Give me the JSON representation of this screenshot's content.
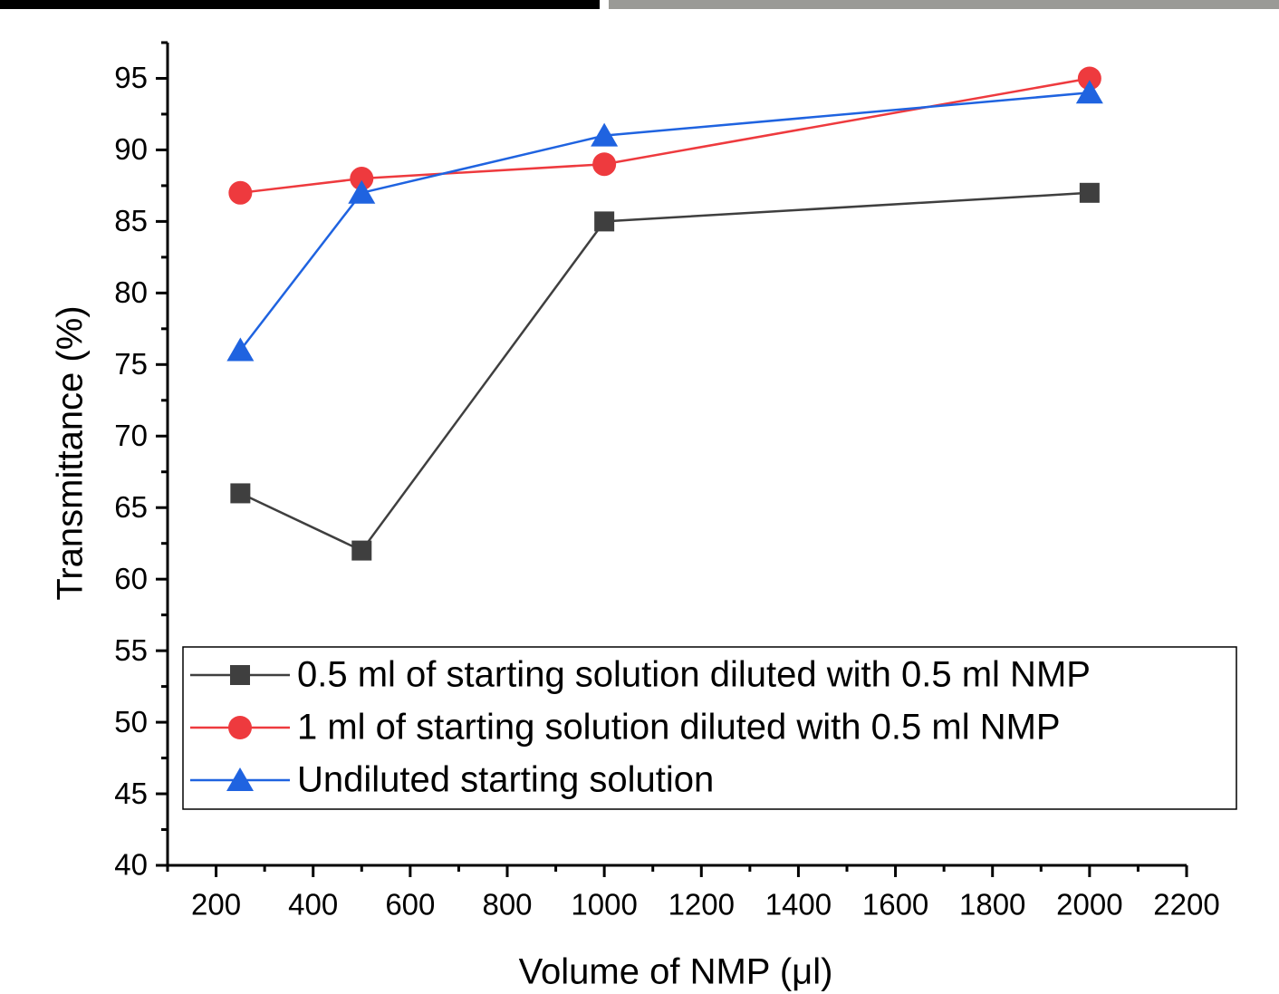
{
  "chart_data": {
    "type": "line",
    "y_label": "Transmittance (%)",
    "x_label": "Volume of NMP (μl)",
    "xlim": [
      100,
      2200
    ],
    "xticks": [
      200,
      400,
      600,
      800,
      1000,
      1200,
      1400,
      1600,
      1800,
      2000,
      2200
    ],
    "ylim": [
      40,
      97.5
    ],
    "yticks": [
      40,
      45,
      50,
      55,
      60,
      65,
      70,
      75,
      80,
      85,
      90,
      95
    ],
    "x": [
      250,
      500,
      1000,
      2000
    ],
    "legend": "bottom-right",
    "series": [
      {
        "name": "0.5 ml of starting solution diluted with 0.5 ml NMP",
        "color": "#3f3f3f",
        "marker": "square",
        "values": [
          66,
          62,
          85,
          87
        ]
      },
      {
        "name": "1 ml of starting solution diluted with 0.5 ml NMP",
        "color": "#ee3a3e",
        "marker": "circle",
        "values": [
          87,
          88,
          89,
          95
        ]
      },
      {
        "name": "Undiluted starting solution",
        "color": "#1f63e0",
        "marker": "triangle",
        "values": [
          76,
          87,
          91,
          94
        ]
      }
    ]
  }
}
